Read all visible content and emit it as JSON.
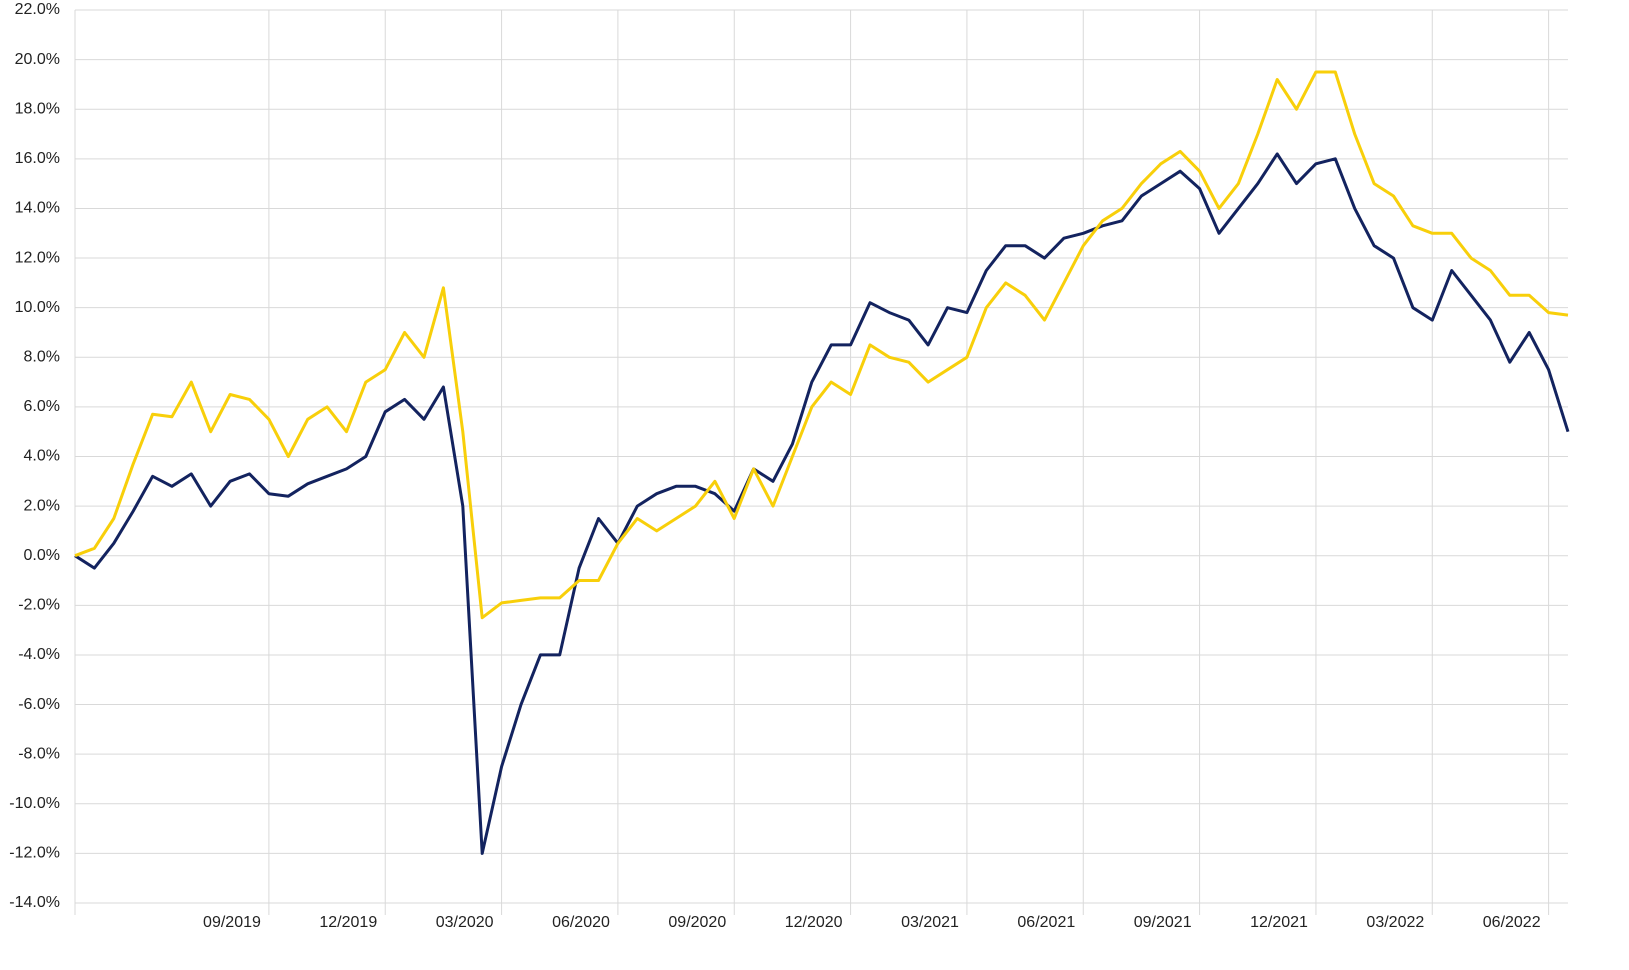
{
  "chart_data": {
    "type": "line",
    "x": [
      "04/2019",
      "04/2019",
      "05/2019",
      "05/2019",
      "06/2019",
      "06/2019",
      "07/2019",
      "07/2019",
      "08/2019",
      "08/2019",
      "09/2019",
      "09/2019",
      "10/2019",
      "10/2019",
      "11/2019",
      "11/2019",
      "12/2019",
      "12/2019",
      "01/2020",
      "01/2020",
      "02/2020",
      "02/2020",
      "03/2020",
      "03/2020",
      "04/2020",
      "04/2020",
      "05/2020",
      "05/2020",
      "06/2020",
      "06/2020",
      "07/2020",
      "07/2020",
      "08/2020",
      "08/2020",
      "09/2020",
      "09/2020",
      "10/2020",
      "10/2020",
      "11/2020",
      "11/2020",
      "12/2020",
      "12/2020",
      "01/2021",
      "01/2021",
      "02/2021",
      "02/2021",
      "03/2021",
      "03/2021",
      "04/2021",
      "04/2021",
      "05/2021",
      "05/2021",
      "06/2021",
      "06/2021",
      "07/2021",
      "07/2021",
      "08/2021",
      "08/2021",
      "09/2021",
      "09/2021",
      "10/2021",
      "10/2021",
      "11/2021",
      "11/2021",
      "12/2021",
      "12/2021",
      "01/2022",
      "01/2022",
      "02/2022",
      "02/2022",
      "03/2022",
      "03/2022",
      "04/2022",
      "04/2022",
      "05/2022",
      "05/2022",
      "06/2022",
      "06/2022"
    ],
    "series": [
      {
        "color": "#13235f",
        "values": [
          0,
          -0.5,
          0.5,
          1.8,
          3.2,
          2.8,
          3.3,
          2.0,
          3.0,
          3.3,
          2.5,
          2.4,
          2.9,
          3.2,
          3.5,
          4.0,
          5.8,
          6.3,
          5.5,
          6.8,
          2.0,
          -12.0,
          -8.5,
          -6.0,
          -4.0,
          -4.0,
          -0.5,
          1.5,
          0.5,
          2.0,
          2.5,
          2.8,
          2.8,
          2.5,
          1.8,
          3.5,
          3.0,
          4.5,
          7.0,
          8.5,
          8.5,
          10.2,
          9.8,
          9.5,
          8.5,
          10.0,
          9.8,
          11.5,
          12.5,
          12.5,
          12.0,
          12.8,
          13.0,
          13.3,
          13.5,
          14.5,
          15.0,
          15.5,
          14.8,
          13.0,
          14.0,
          15.0,
          16.2,
          15.0,
          15.8,
          16.0,
          14.0,
          12.5,
          12.0,
          10.0,
          9.5,
          11.5,
          10.5,
          9.5,
          7.8,
          9.0,
          7.5,
          5.0
        ]
      },
      {
        "color": "#f8cf0a",
        "values": [
          0,
          0.3,
          1.5,
          3.7,
          5.7,
          5.6,
          7.0,
          5.0,
          6.5,
          6.3,
          5.5,
          4.0,
          5.5,
          6.0,
          5.0,
          7.0,
          7.5,
          9.0,
          8.0,
          10.8,
          5.0,
          -2.5,
          -1.9,
          -1.8,
          -1.7,
          -1.7,
          -1.0,
          -1.0,
          0.5,
          1.5,
          1.0,
          1.5,
          2.0,
          3.0,
          1.5,
          3.5,
          2.0,
          4.0,
          6.0,
          7.0,
          6.5,
          8.5,
          8.0,
          7.8,
          7.0,
          7.5,
          8.0,
          10.0,
          11.0,
          10.5,
          9.5,
          11.0,
          12.5,
          13.5,
          14.0,
          15.0,
          15.8,
          16.3,
          15.5,
          14.0,
          15.0,
          17.0,
          19.2,
          18.0,
          19.5,
          19.5,
          17.0,
          15.0,
          14.5,
          13.3,
          13.0,
          13.0,
          12.0,
          11.5,
          10.5,
          10.5,
          9.8,
          9.7
        ]
      }
    ],
    "xticks": [
      "09/2019",
      "12/2019",
      "03/2020",
      "06/2020",
      "09/2020",
      "12/2020",
      "03/2021",
      "06/2021",
      "09/2021",
      "12/2021",
      "03/2022",
      "06/2022"
    ],
    "ylim": [
      -14,
      22
    ],
    "yticks": [
      {
        "value": -14,
        "label": "-14.0%"
      },
      {
        "value": -12,
        "label": "-12.0%"
      },
      {
        "value": -10,
        "label": "-10.0%"
      },
      {
        "value": -8,
        "label": "-8.0%"
      },
      {
        "value": -6,
        "label": "-6.0%"
      },
      {
        "value": -4,
        "label": "-4.0%"
      },
      {
        "value": -2,
        "label": "-2.0%"
      },
      {
        "value": 0,
        "label": "0.0%"
      },
      {
        "value": 2,
        "label": "2.0%"
      },
      {
        "value": 4,
        "label": "4.0%"
      },
      {
        "value": 6,
        "label": "6.0%"
      },
      {
        "value": 8,
        "label": "8.0%"
      },
      {
        "value": 10,
        "label": "10.0%"
      },
      {
        "value": 12,
        "label": "12.0%"
      },
      {
        "value": 14,
        "label": "14.0%"
      },
      {
        "value": 16,
        "label": "16.0%"
      },
      {
        "value": 18,
        "label": "18.0%"
      },
      {
        "value": 20,
        "label": "20.0%"
      },
      {
        "value": 22,
        "label": "22.0%"
      }
    ],
    "grid": true
  }
}
